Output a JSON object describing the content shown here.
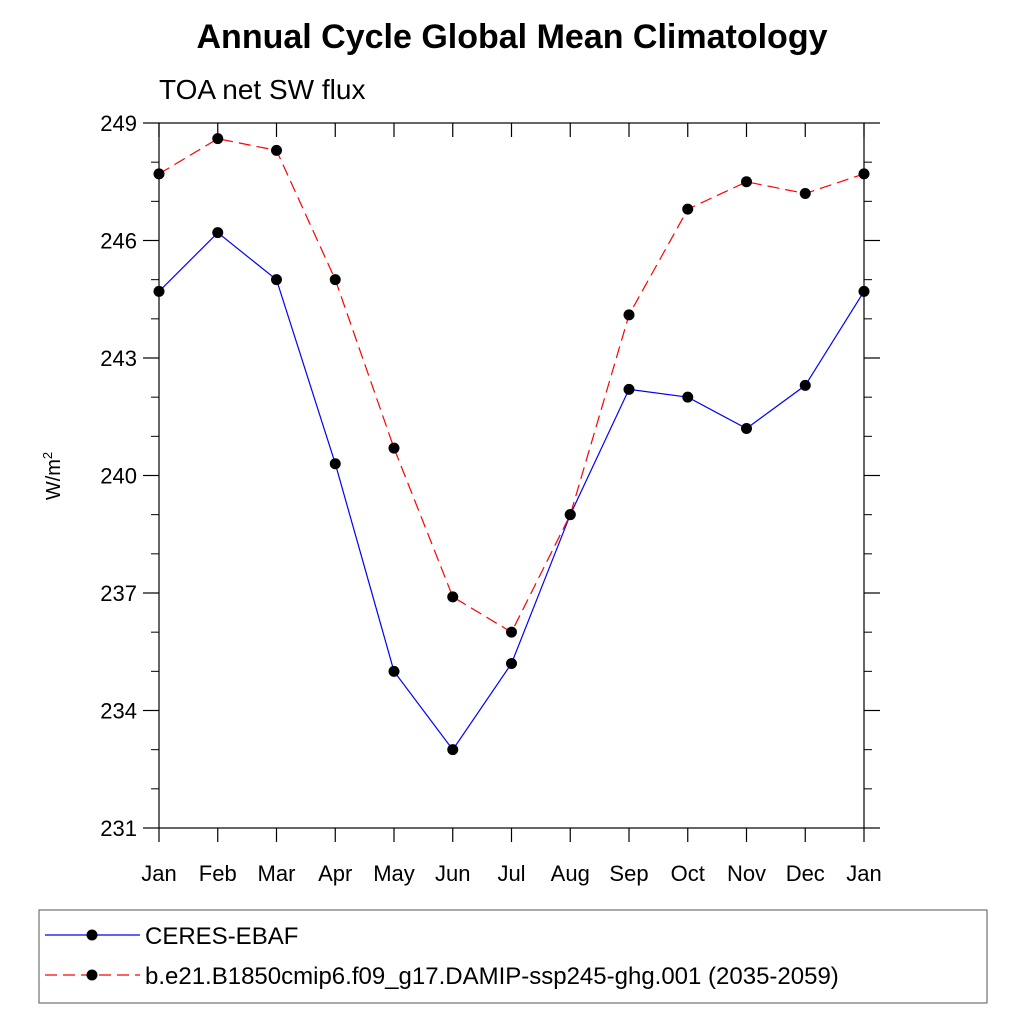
{
  "chart_data": {
    "type": "line",
    "title": "Annual Cycle Global Mean Climatology",
    "subtitle": "TOA net SW flux",
    "xlabel": "",
    "ylabel": "W/m",
    "ylabel_sup": "2",
    "categories": [
      "Jan",
      "Feb",
      "Mar",
      "Apr",
      "May",
      "Jun",
      "Jul",
      "Aug",
      "Sep",
      "Oct",
      "Nov",
      "Dec",
      "Jan"
    ],
    "ylim": [
      231,
      249
    ],
    "yticks": [
      "231",
      "234",
      "237",
      "240",
      "243",
      "246",
      "249"
    ],
    "grid": false,
    "legend_position": "bottom",
    "series": [
      {
        "name": "CERES-EBAF",
        "color": "#0000ff",
        "dash": "solid",
        "values": [
          244.7,
          246.2,
          245.0,
          240.3,
          235.0,
          233.0,
          235.2,
          239.0,
          242.2,
          242.0,
          241.2,
          242.3,
          244.7
        ]
      },
      {
        "name": "b.e21.B1850cmip6.f09_g17.DAMIP-ssp245-ghg.001 (2035-2059)",
        "color": "#ff0000",
        "dash": "dashed",
        "values": [
          247.7,
          248.6,
          248.3,
          245.0,
          240.7,
          236.9,
          236.0,
          239.0,
          244.1,
          246.8,
          247.5,
          247.2,
          247.7
        ]
      }
    ]
  }
}
